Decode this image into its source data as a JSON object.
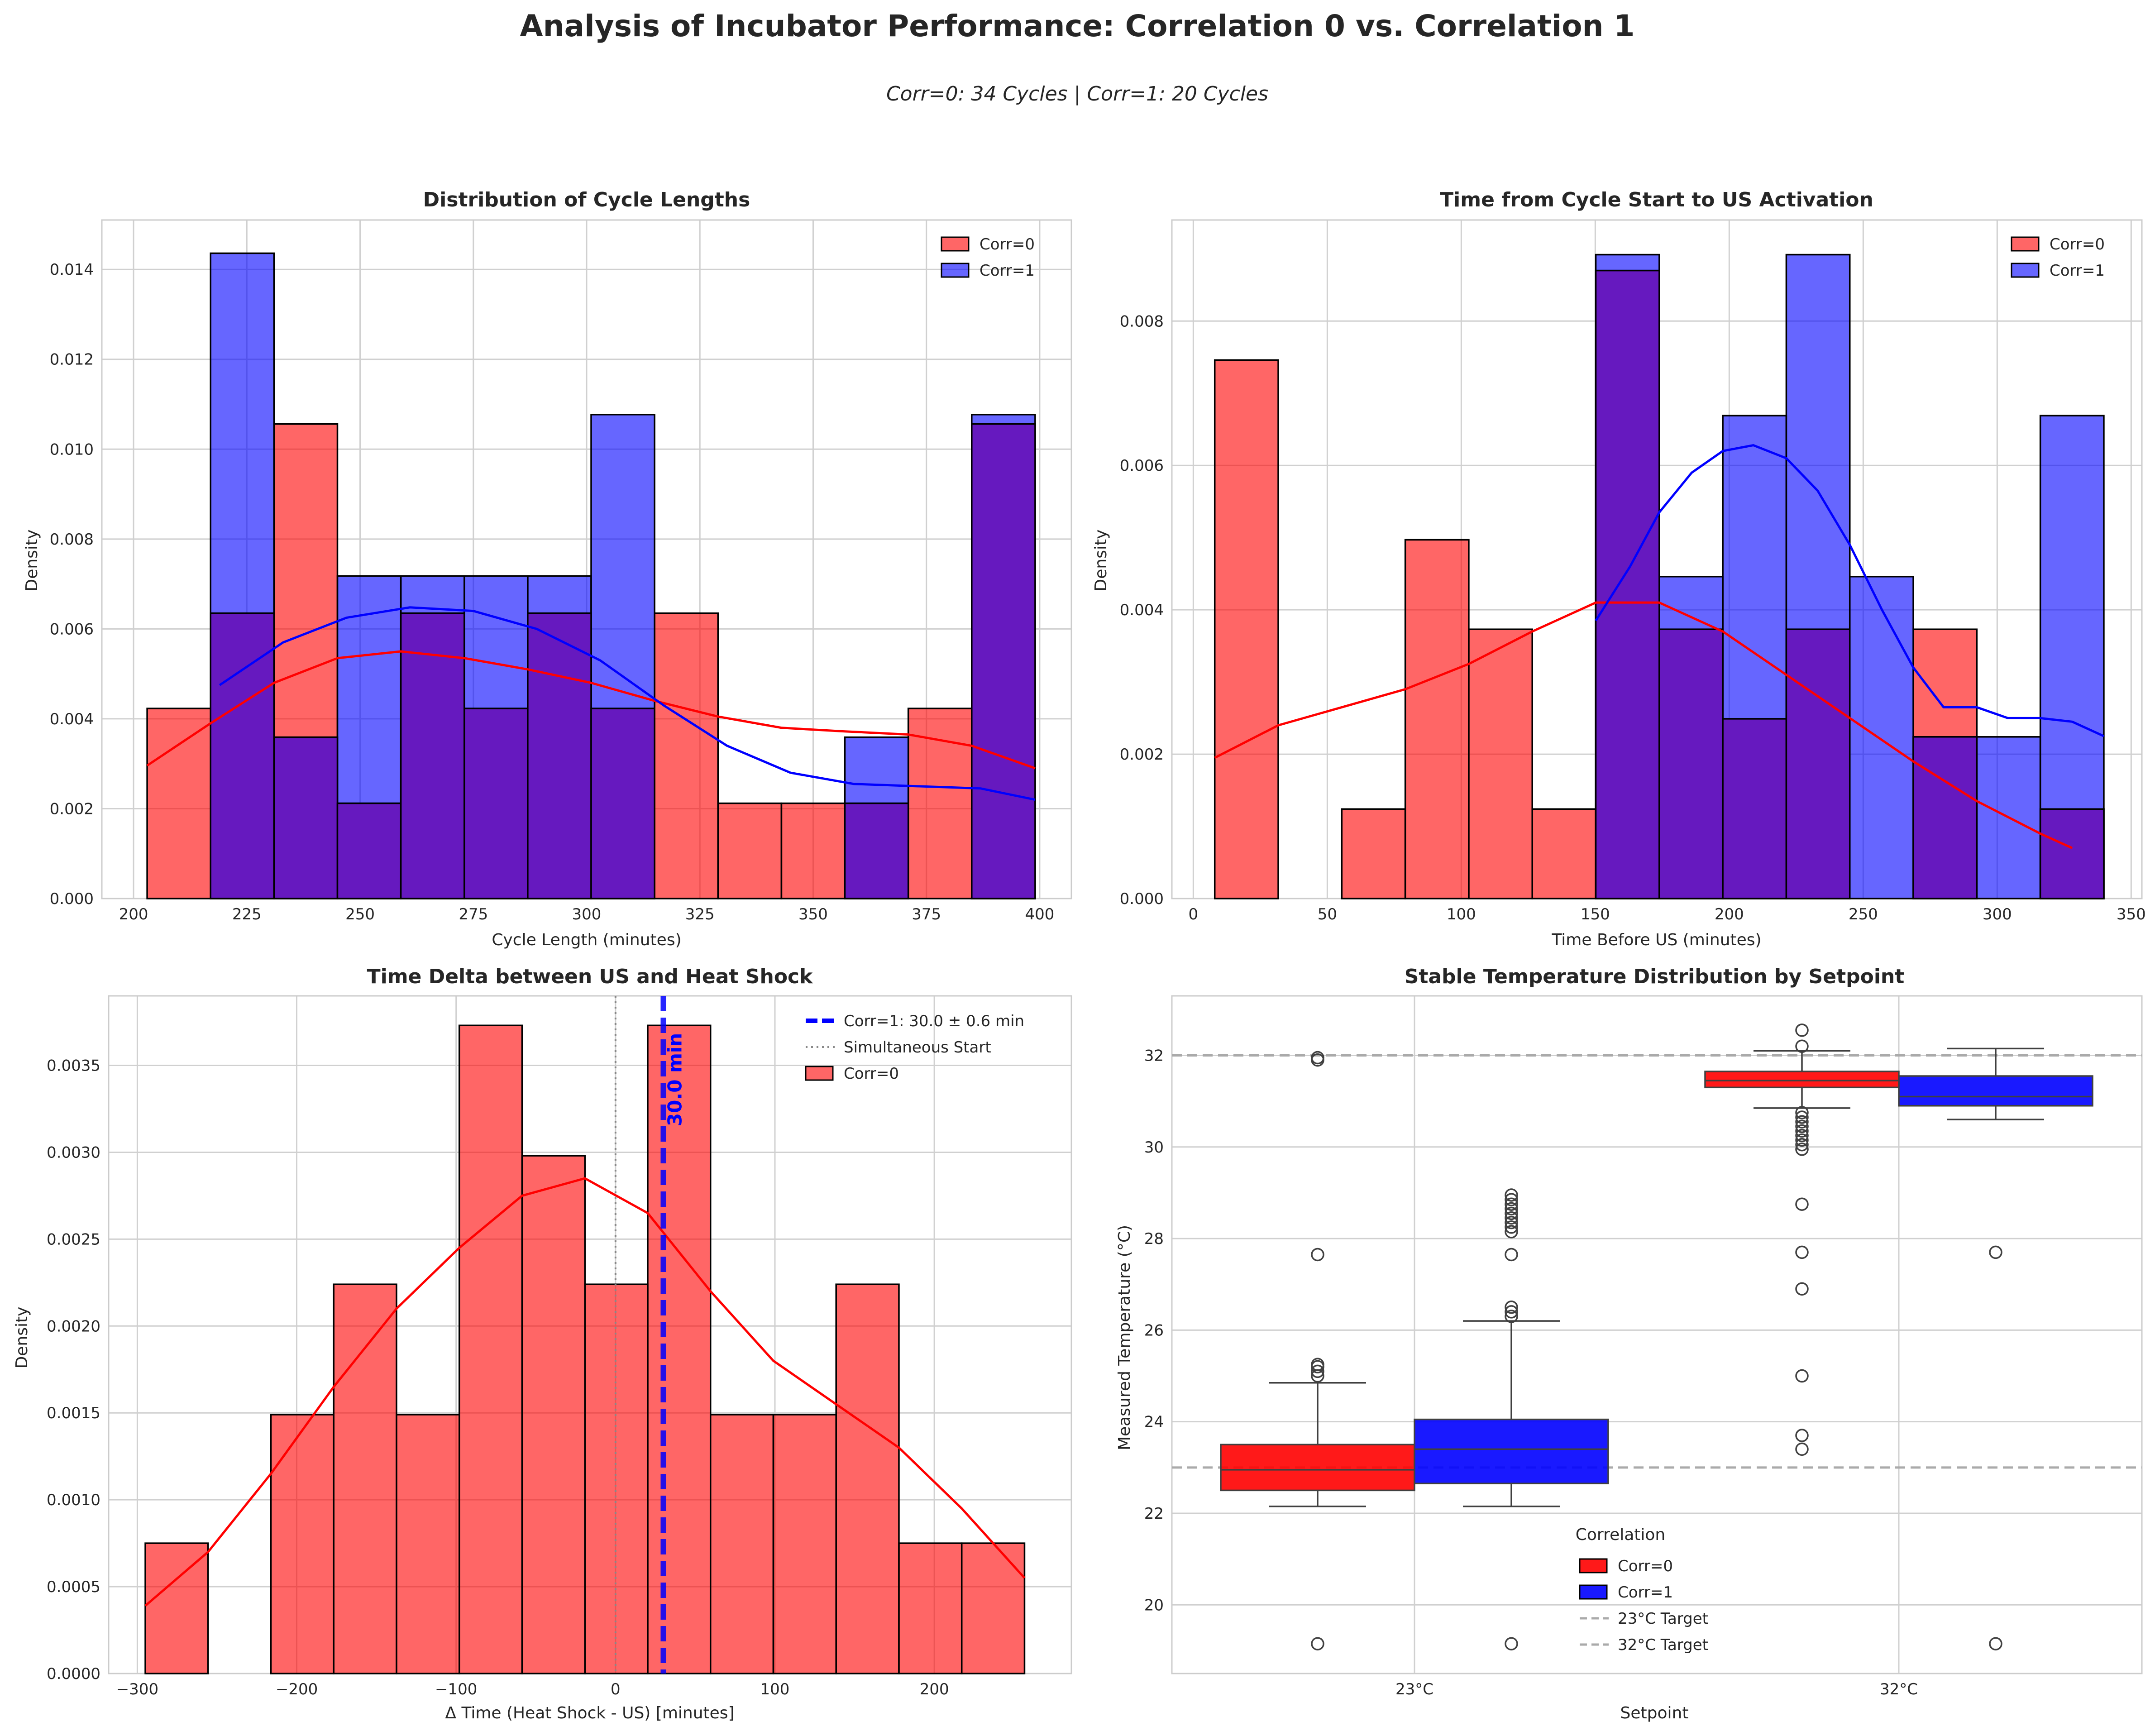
{
  "figure": {
    "title": "Analysis of Incubator Performance: Correlation 0 vs. Correlation 1",
    "subtitle": "Corr=0: 34 Cycles | Corr=1: 20 Cycles"
  },
  "colors": {
    "corr0": "#ff0000",
    "corr1": "#0000ff",
    "overlap": "#6619bf",
    "target_line": "#aaaaaa",
    "grid": "#d0d0d0"
  },
  "chart_data": [
    {
      "id": "cycle-lengths",
      "type": "bar",
      "title": "Distribution of Cycle Lengths",
      "xlabel": "Cycle Length (minutes)",
      "ylabel": "Density",
      "xlim": [
        193,
        407
      ],
      "ylim": [
        0,
        0.0151
      ],
      "xticks": [
        200,
        225,
        250,
        275,
        300,
        325,
        350,
        375,
        400
      ],
      "yticks": [
        0.0,
        0.002,
        0.004,
        0.006,
        0.008,
        0.01,
        0.012,
        0.014
      ],
      "ytick_decimals": 3,
      "legend": "top-right",
      "series": [
        {
          "name": "Corr=0",
          "bin_edges": [
            203,
            217,
            231,
            245,
            259,
            273,
            287,
            301,
            315,
            329,
            343,
            357,
            371,
            385,
            399
          ],
          "values": [
            0.00423,
            0.00635,
            0.01056,
            0.00212,
            0.00635,
            0.00423,
            0.00635,
            0.00423,
            0.00635,
            0.00212,
            0.00212,
            0.00212,
            0.00423,
            0.01056
          ],
          "kde": {
            "x": [
              203,
              217,
              231,
              245,
              259,
              273,
              287,
              301,
              315,
              329,
              343,
              357,
              371,
              385,
              399
            ],
            "y": [
              0.00296,
              0.0039,
              0.0048,
              0.00535,
              0.0055,
              0.00535,
              0.0051,
              0.0048,
              0.0044,
              0.00405,
              0.0038,
              0.00372,
              0.00365,
              0.0034,
              0.0029
            ]
          }
        },
        {
          "name": "Corr=1",
          "bin_edges": [
            217,
            231,
            245,
            259,
            273,
            287,
            301,
            315,
            329,
            343,
            357,
            371,
            385,
            399
          ],
          "values": [
            0.01436,
            0.00359,
            0.00718,
            0.00718,
            0.00718,
            0.00718,
            0.01077,
            0,
            0,
            0,
            0.00359,
            0,
            0.01077
          ],
          "kde": {
            "x": [
              219,
              233,
              247,
              261,
              275,
              289,
              303,
              317,
              331,
              345,
              359,
              373,
              387,
              399
            ],
            "y": [
              0.00475,
              0.0057,
              0.00625,
              0.00648,
              0.0064,
              0.006,
              0.0053,
              0.0043,
              0.0034,
              0.0028,
              0.00255,
              0.0025,
              0.00245,
              0.0022
            ]
          }
        }
      ]
    },
    {
      "id": "time-before-us",
      "type": "bar",
      "title": "Time from Cycle Start to US Activation",
      "xlabel": "Time Before US (minutes)",
      "ylabel": "Density",
      "xlim": [
        -8,
        354
      ],
      "ylim": [
        0,
        0.0094
      ],
      "xticks": [
        0,
        50,
        100,
        150,
        200,
        250,
        300,
        350
      ],
      "yticks": [
        0.0,
        0.002,
        0.004,
        0.006,
        0.008
      ],
      "ytick_decimals": 3,
      "legend": "top-right",
      "series": [
        {
          "name": "Corr=0",
          "bin_edges": [
            8,
            31.7,
            55.4,
            79.1,
            102.8,
            126.5,
            150.2,
            173.9,
            197.6,
            221.3,
            245,
            268.7,
            292.4,
            316.1,
            339.8
          ],
          "values": [
            0.00746,
            0,
            0.00124,
            0.00497,
            0.00373,
            0.00124,
            0.0087,
            0.00373,
            0.00249,
            0.00373,
            0,
            0.00373,
            0,
            0.00124
          ],
          "kde": {
            "x": [
              8,
              31.7,
              55.4,
              79.1,
              102.8,
              126.5,
              150.2,
              173.9,
              197.6,
              221.3,
              245,
              268.7,
              292.4,
              316.1,
              328
            ],
            "y": [
              0.00195,
              0.0024,
              0.00265,
              0.0029,
              0.00325,
              0.0037,
              0.0041,
              0.0041,
              0.0037,
              0.0031,
              0.0025,
              0.0019,
              0.00135,
              0.0009,
              0.0007
            ]
          }
        },
        {
          "name": "Corr=1",
          "bin_edges": [
            150.2,
            173.9,
            197.6,
            221.3,
            245,
            268.7,
            292.4,
            316.1,
            339.8
          ],
          "values": [
            0.00892,
            0.00446,
            0.00669,
            0.00892,
            0.00446,
            0.00224,
            0.00224,
            0.00669
          ],
          "kde": {
            "x": [
              150.2,
              163,
              173.9,
              186,
              197.6,
              209,
              221.3,
              233,
              245,
              257,
              268.7,
              280,
              292.4,
              304,
              316.1,
              328,
              339.8
            ],
            "y": [
              0.00385,
              0.0046,
              0.00535,
              0.0059,
              0.0062,
              0.00628,
              0.0061,
              0.00565,
              0.0049,
              0.004,
              0.0032,
              0.00265,
              0.00265,
              0.0025,
              0.0025,
              0.00245,
              0.00225
            ]
          }
        }
      ]
    },
    {
      "id": "time-delta",
      "type": "bar",
      "title": "Time Delta between US and Heat Shock",
      "xlabel": "Δ Time (Heat Shock - US) [minutes]",
      "ylabel": "Density",
      "xlim": [
        -318,
        286
      ],
      "ylim": [
        0,
        0.0039
      ],
      "xticks": [
        -300,
        -200,
        -100,
        0,
        100,
        200
      ],
      "yticks": [
        0.0,
        0.0005,
        0.001,
        0.0015,
        0.002,
        0.0025,
        0.003,
        0.0035
      ],
      "ytick_decimals": 4,
      "legend": "top-right",
      "series": [
        {
          "name": "Corr=0",
          "bin_edges": [
            -295,
            -255.6,
            -216.2,
            -176.8,
            -137.4,
            -98,
            -58.6,
            -19.2,
            20.2,
            59.6,
            99,
            138.4,
            177.8,
            217.2,
            256.6
          ],
          "values": [
            0.00075,
            0,
            0.00149,
            0.00224,
            0.00149,
            0.00373,
            0.00298,
            0.00224,
            0.00373,
            0.00149,
            0.00149,
            0.00224,
            0.00075,
            0.00075
          ],
          "kde": {
            "x": [
              -295,
              -255.6,
              -216.2,
              -176.8,
              -137.4,
              -98,
              -58.6,
              -19.2,
              20.2,
              59.6,
              99,
              138.4,
              177.8,
              217.2,
              256.6
            ],
            "y": [
              0.00039,
              0.0007,
              0.00115,
              0.00165,
              0.0021,
              0.00245,
              0.00275,
              0.00285,
              0.00265,
              0.0022,
              0.0018,
              0.00155,
              0.0013,
              0.00095,
              0.00055
            ]
          }
        }
      ],
      "reference_lines": [
        {
          "name": "Corr=1: 30.0 ± 0.6 min",
          "x": 30.0,
          "style": "dashed-blue"
        },
        {
          "name": "Simultaneous Start",
          "x": 0,
          "style": "dotted-gray"
        }
      ],
      "annotation": "30.0 min"
    },
    {
      "id": "stable-temperature",
      "type": "box",
      "title": "Stable Temperature Distribution by Setpoint",
      "xlabel": "Setpoint",
      "ylabel": "Measured Temperature (°C)",
      "categories": [
        "23°C",
        "32°C"
      ],
      "ylim": [
        18.5,
        33.3
      ],
      "yticks": [
        20,
        22,
        24,
        26,
        28,
        30,
        32
      ],
      "ytick_decimals": 0,
      "legend_title": "Correlation",
      "legend": "lower-center",
      "targets": [
        {
          "name": "23°C Target",
          "y": 23
        },
        {
          "name": "32°C Target",
          "y": 32
        }
      ],
      "series": [
        {
          "name": "Corr=0",
          "boxes": [
            {
              "whislo": 22.15,
              "q1": 22.5,
              "med": 22.95,
              "q3": 23.5,
              "whishi": 24.85,
              "fliers": [
                19.15,
                25.0,
                25.1,
                25.2,
                25.25,
                27.65,
                31.9,
                31.95
              ]
            },
            {
              "whislo": 30.85,
              "q1": 31.3,
              "med": 31.45,
              "q3": 31.65,
              "whishi": 32.1,
              "fliers": [
                23.4,
                23.7,
                25.0,
                26.9,
                27.7,
                28.75,
                29.95,
                30.05,
                30.15,
                30.25,
                30.35,
                30.45,
                30.55,
                30.65,
                30.75,
                32.2,
                32.55
              ]
            }
          ]
        },
        {
          "name": "Corr=1",
          "boxes": [
            {
              "whislo": 22.15,
              "q1": 22.65,
              "med": 23.4,
              "q3": 24.05,
              "whishi": 26.2,
              "fliers": [
                19.15,
                26.3,
                26.4,
                26.5,
                27.65,
                28.15,
                28.25,
                28.35,
                28.45,
                28.55,
                28.65,
                28.75,
                28.85,
                28.95
              ]
            },
            {
              "whislo": 30.6,
              "q1": 30.9,
              "med": 31.1,
              "q3": 31.55,
              "whishi": 32.15,
              "fliers": [
                19.15,
                27.7
              ]
            }
          ]
        }
      ]
    }
  ]
}
